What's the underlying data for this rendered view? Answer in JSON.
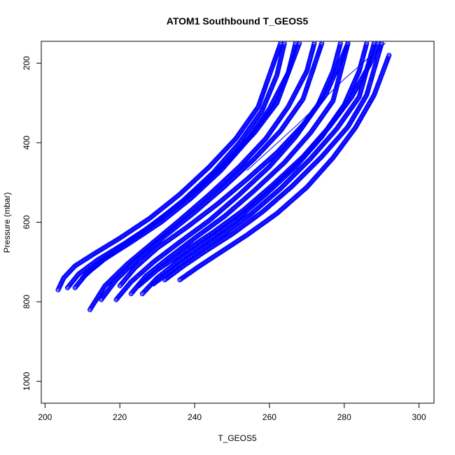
{
  "chart_data": {
    "type": "scatter",
    "title": "ATOM1 Southbound T_GEOS5",
    "xlabel": "T_GEOS5",
    "ylabel": "Pressure (mbar)",
    "xlim": [
      199,
      304
    ],
    "ylim": [
      1055,
      145
    ],
    "y_reversed": true,
    "x_ticks": [
      200,
      220,
      240,
      260,
      280,
      300
    ],
    "y_ticks": [
      200,
      400,
      600,
      800,
      1000
    ],
    "grid": false,
    "legend": "none",
    "marker": "open-circle",
    "color": "#0000ff",
    "series": [
      {
        "x": [
          203.5,
          205,
          208,
          213,
          220,
          228,
          236,
          244,
          251,
          257,
          263
        ],
        "y": [
          770,
          740,
          710,
          680,
          640,
          590,
          530,
          460,
          390,
          310,
          150
        ]
      },
      {
        "x": [
          206,
          209,
          214,
          221,
          229,
          237,
          245,
          252,
          258,
          262,
          264
        ],
        "y": [
          765,
          730,
          695,
          655,
          605,
          545,
          475,
          400,
          320,
          230,
          150
        ]
      },
      {
        "x": [
          208,
          211,
          216,
          223,
          231,
          239,
          247,
          254,
          260,
          265,
          267
        ],
        "y": [
          765,
          730,
          692,
          650,
          600,
          540,
          470,
          395,
          315,
          225,
          150
        ]
      },
      {
        "x": [
          210,
          214,
          219,
          226,
          233,
          241,
          249,
          256,
          262,
          268
        ],
        "y": [
          740,
          705,
          670,
          625,
          575,
          515,
          445,
          375,
          300,
          150
        ]
      },
      {
        "x": [
          212,
          216,
          222,
          229,
          236,
          244,
          252,
          259,
          265,
          270,
          272
        ],
        "y": [
          820,
          760,
          705,
          650,
          595,
          530,
          460,
          390,
          310,
          220,
          150
        ]
      },
      {
        "x": [
          215,
          219,
          225,
          232,
          240,
          248,
          256,
          263,
          269,
          274
        ],
        "y": [
          795,
          745,
          690,
          635,
          575,
          510,
          440,
          370,
          290,
          150
        ]
      },
      {
        "x": [
          219,
          223,
          229,
          236,
          244,
          252,
          260,
          267,
          273,
          277,
          279
        ],
        "y": [
          795,
          750,
          700,
          650,
          595,
          530,
          460,
          385,
          305,
          220,
          150
        ]
      },
      {
        "x": [
          223,
          227,
          233,
          240,
          248,
          256,
          264,
          271,
          277,
          281
        ],
        "y": [
          780,
          735,
          690,
          640,
          585,
          520,
          450,
          375,
          295,
          150
        ]
      },
      {
        "x": [
          226,
          230,
          236,
          243,
          251,
          259,
          267,
          274,
          280,
          284,
          286
        ],
        "y": [
          780,
          740,
          695,
          648,
          595,
          530,
          460,
          385,
          305,
          220,
          150
        ]
      },
      {
        "x": [
          229,
          234,
          240,
          247,
          255,
          263,
          271,
          278,
          284,
          288
        ],
        "y": [
          755,
          720,
          680,
          635,
          580,
          515,
          440,
          365,
          285,
          150
        ]
      },
      {
        "x": [
          232,
          237,
          243,
          250,
          258,
          266,
          274,
          281,
          286,
          290
        ],
        "y": [
          745,
          710,
          672,
          630,
          575,
          510,
          435,
          360,
          280,
          150
        ]
      },
      {
        "x": [
          236,
          241,
          247,
          254,
          262,
          270,
          277,
          283,
          288,
          292
        ],
        "y": [
          745,
          712,
          675,
          632,
          578,
          512,
          438,
          362,
          280,
          180
        ]
      },
      {
        "x": [
          225,
          230,
          237,
          245,
          253,
          261,
          269,
          276,
          282,
          287,
          289
        ],
        "y": [
          760,
          720,
          675,
          625,
          570,
          505,
          435,
          360,
          285,
          200,
          150
        ]
      },
      {
        "x": [
          220,
          224,
          230,
          238,
          246,
          254,
          262,
          269,
          275,
          279,
          281
        ],
        "y": [
          760,
          715,
          665,
          612,
          555,
          492,
          425,
          355,
          280,
          195,
          150
        ]
      }
    ],
    "lines": [
      {
        "x": [
          254,
          268,
          280,
          291
        ],
        "y": [
          470,
          350,
          240,
          150
        ]
      }
    ]
  }
}
